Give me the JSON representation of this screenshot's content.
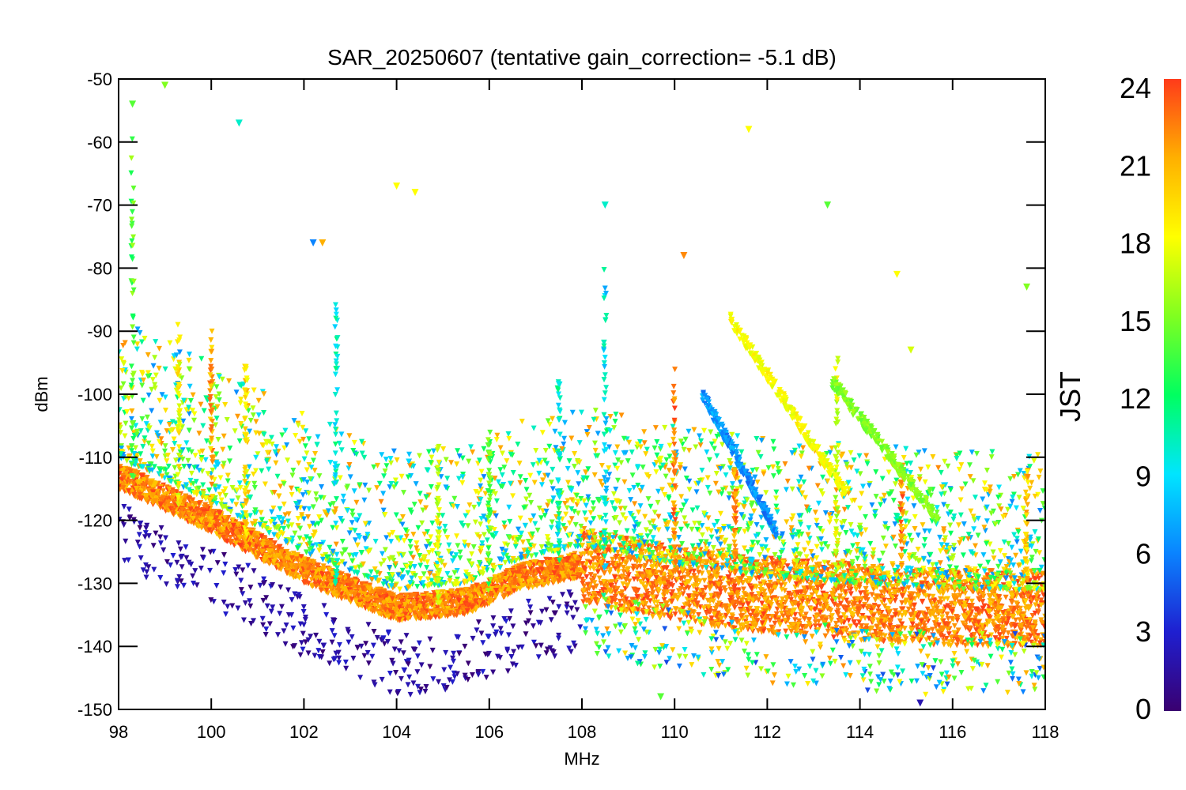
{
  "chart_data": {
    "type": "scatter",
    "title": "SAR_20250607 (tentative gain_correction= -5.1 dB)",
    "xlabel": "MHz",
    "ylabel": "dBm",
    "xlim": [
      98,
      118
    ],
    "ylim": [
      -150,
      -50
    ],
    "xticks": [
      "98",
      "100",
      "102",
      "104",
      "106",
      "108",
      "110",
      "112",
      "114",
      "116",
      "118"
    ],
    "yticks": [
      "-50",
      "-60",
      "-70",
      "-80",
      "-90",
      "-100",
      "-110",
      "-120",
      "-130",
      "-140",
      "-150"
    ],
    "grid": false,
    "marker": "asterisk",
    "colorbar": {
      "label": "JST",
      "range": [
        0,
        24
      ],
      "ticks": [
        "0",
        "3",
        "6",
        "9",
        "12",
        "15",
        "18",
        "21",
        "24"
      ],
      "colormap": [
        "#3a0070",
        "#1f1fd0",
        "#0a84ff",
        "#00e5ff",
        "#00ff60",
        "#80ff20",
        "#ffff00",
        "#ffb000",
        "#ff3b1a"
      ]
    },
    "noise_floor_dBm": [
      {
        "MHz": 98.0,
        "dBm": -113
      },
      {
        "MHz": 100.0,
        "dBm": -120
      },
      {
        "MHz": 102.0,
        "dBm": -128
      },
      {
        "MHz": 104.0,
        "dBm": -134
      },
      {
        "MHz": 105.5,
        "dBm": -133
      },
      {
        "MHz": 106.7,
        "dBm": -129
      },
      {
        "MHz": 108.0,
        "dBm": -127
      },
      {
        "MHz": 110.0,
        "dBm": -130
      },
      {
        "MHz": 112.0,
        "dBm": -132
      },
      {
        "MHz": 114.0,
        "dBm": -133
      },
      {
        "MHz": 116.0,
        "dBm": -134
      },
      {
        "MHz": 118.0,
        "dBm": -134
      }
    ],
    "highlighted_points": [
      {
        "MHz": 99.0,
        "dBm": -51,
        "JST": 15
      },
      {
        "MHz": 98.3,
        "dBm": -54,
        "JST": 14
      },
      {
        "MHz": 100.6,
        "dBm": -57,
        "JST": 10
      },
      {
        "MHz": 111.6,
        "dBm": -58,
        "JST": 18
      },
      {
        "MHz": 104.0,
        "dBm": -67,
        "JST": 18
      },
      {
        "MHz": 104.4,
        "dBm": -68,
        "JST": 18
      },
      {
        "MHz": 108.5,
        "dBm": -70,
        "JST": 10
      },
      {
        "MHz": 113.3,
        "dBm": -70,
        "JST": 14
      },
      {
        "MHz": 102.2,
        "dBm": -76,
        "JST": 6
      },
      {
        "MHz": 102.4,
        "dBm": -76,
        "JST": 21
      },
      {
        "MHz": 110.2,
        "dBm": -78,
        "JST": 22
      },
      {
        "MHz": 114.8,
        "dBm": -81,
        "JST": 18
      },
      {
        "MHz": 117.6,
        "dBm": -83,
        "JST": 15
      },
      {
        "MHz": 115.1,
        "dBm": -93,
        "JST": 17
      },
      {
        "MHz": 115.3,
        "dBm": -149,
        "JST": 2
      },
      {
        "MHz": 109.7,
        "dBm": -148,
        "JST": 14
      },
      {
        "MHz": 98.0,
        "dBm": -120,
        "JST": 2
      }
    ]
  }
}
